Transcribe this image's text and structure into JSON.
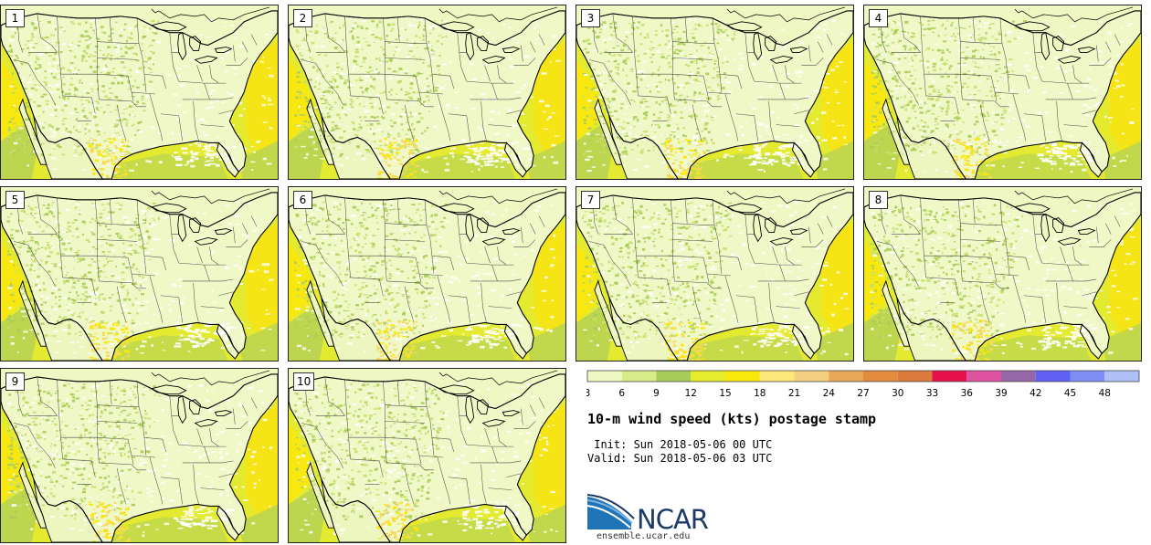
{
  "panels": [
    {
      "label": "1"
    },
    {
      "label": "2"
    },
    {
      "label": "3"
    },
    {
      "label": "4"
    },
    {
      "label": "5"
    },
    {
      "label": "6"
    },
    {
      "label": "7"
    },
    {
      "label": "8"
    },
    {
      "label": "9"
    },
    {
      "label": "10"
    }
  ],
  "colorbar": {
    "ticks": [
      "3",
      "6",
      "9",
      "12",
      "15",
      "18",
      "21",
      "24",
      "27",
      "30",
      "33",
      "36",
      "39",
      "42",
      "45",
      "48"
    ],
    "colors": [
      "#eff7c2",
      "#d8ec8a",
      "#a8cc58",
      "#e4ec2c",
      "#fae80c",
      "#fbe77a",
      "#f4cf80",
      "#e9a858",
      "#e38c3e",
      "#dd7a3c",
      "#e7104a",
      "#de52a0",
      "#9668a8",
      "#5f60f4",
      "#7e8ef4",
      "#afc0f6"
    ]
  },
  "title": "10-m wind speed (kts) postage stamp",
  "init_line": " Init: Sun 2018-05-06 00 UTC",
  "valid_line": "Valid: Sun 2018-05-06 03 UTC",
  "logo": {
    "text": "NCAR",
    "url": "ensemble.ucar.edu"
  }
}
